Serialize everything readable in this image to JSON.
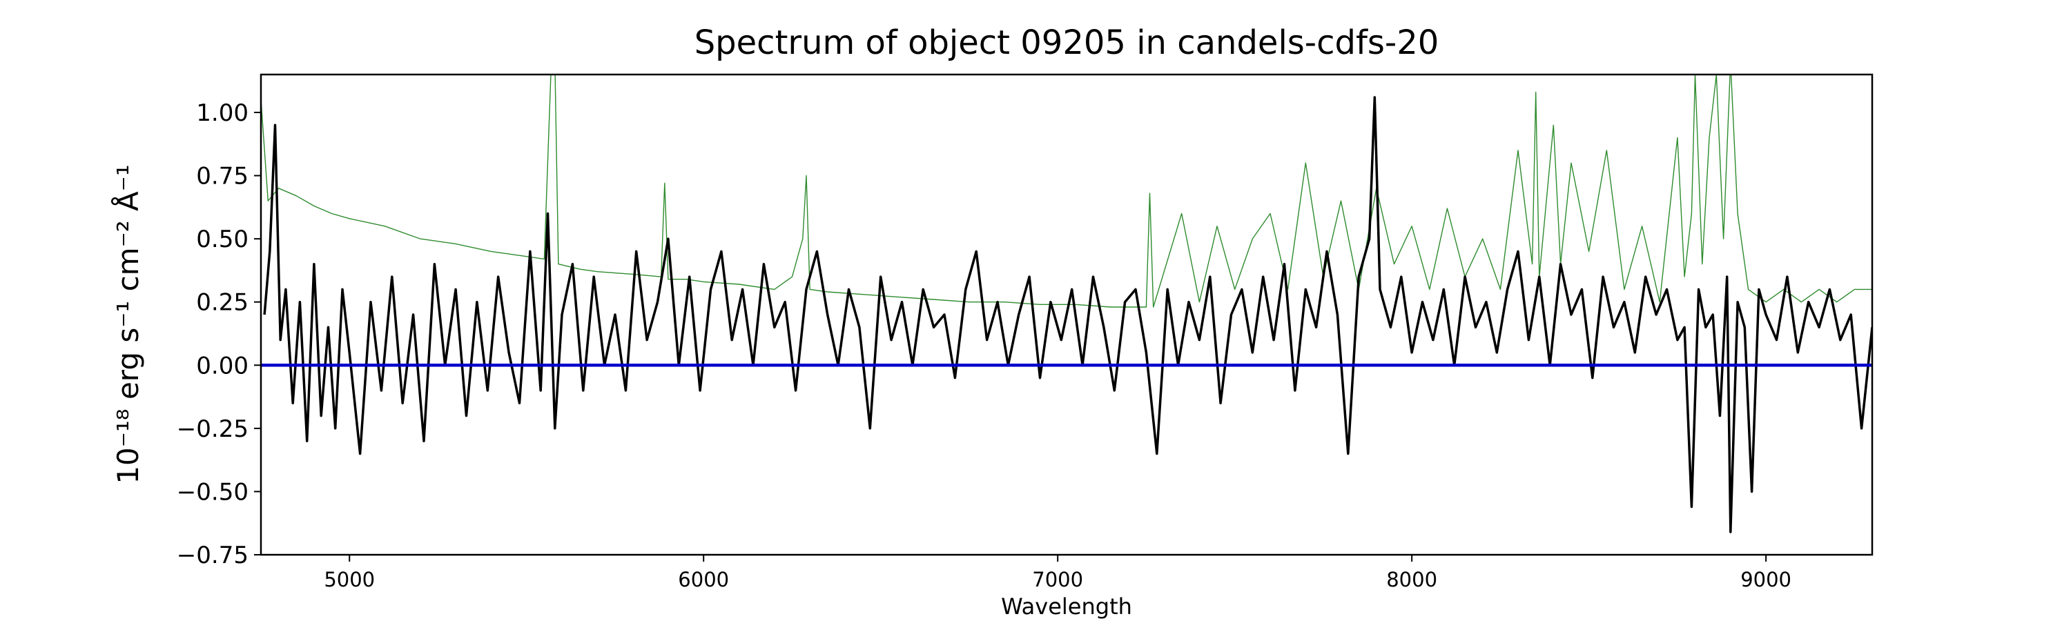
{
  "chart_data": {
    "type": "line",
    "title": "Spectrum of object 09205 in candels-cdfs-20",
    "xlabel": "Wavelength",
    "ylabel": "10⁻¹⁸ erg s⁻¹ cm⁻² Å⁻¹",
    "xlim": [
      4750,
      9300
    ],
    "ylim": [
      -0.75,
      1.15
    ],
    "x_ticks": [
      5000,
      6000,
      7000,
      8000,
      9000
    ],
    "y_ticks": [
      -0.75,
      -0.5,
      -0.25,
      0.0,
      0.25,
      0.5,
      0.75,
      1.0
    ],
    "x_tick_labels": [
      "5000",
      "6000",
      "7000",
      "8000",
      "9000"
    ],
    "y_tick_labels": [
      "−0.75",
      "−0.50",
      "−0.25",
      "0.00",
      "0.25",
      "0.50",
      "0.75",
      "1.00"
    ],
    "grid": false,
    "series": [
      {
        "color": "#000000",
        "style": "solid",
        "x": [
          4760,
          4775,
          4790,
          4805,
          4820,
          4840,
          4860,
          4880,
          4900,
          4920,
          4940,
          4960,
          4980,
          5000,
          5030,
          5060,
          5090,
          5120,
          5150,
          5180,
          5210,
          5240,
          5270,
          5300,
          5330,
          5360,
          5390,
          5420,
          5450,
          5480,
          5510,
          5540,
          5560,
          5580,
          5600,
          5630,
          5660,
          5690,
          5720,
          5750,
          5780,
          5810,
          5840,
          5870,
          5900,
          5930,
          5960,
          5990,
          6020,
          6050,
          6080,
          6110,
          6140,
          6170,
          6200,
          6230,
          6260,
          6290,
          6320,
          6350,
          6380,
          6410,
          6440,
          6470,
          6500,
          6530,
          6560,
          6590,
          6620,
          6650,
          6680,
          6710,
          6740,
          6770,
          6800,
          6830,
          6860,
          6890,
          6920,
          6950,
          6980,
          7010,
          7040,
          7070,
          7100,
          7130,
          7160,
          7190,
          7220,
          7250,
          7280,
          7310,
          7340,
          7370,
          7400,
          7430,
          7460,
          7490,
          7520,
          7550,
          7580,
          7610,
          7640,
          7670,
          7700,
          7730,
          7760,
          7790,
          7820,
          7850,
          7880,
          7895,
          7910,
          7940,
          7970,
          8000,
          8030,
          8060,
          8090,
          8120,
          8150,
          8180,
          8210,
          8240,
          8270,
          8300,
          8330,
          8360,
          8390,
          8420,
          8450,
          8480,
          8510,
          8540,
          8570,
          8600,
          8630,
          8660,
          8690,
          8720,
          8750,
          8770,
          8790,
          8810,
          8830,
          8850,
          8870,
          8890,
          8900,
          8920,
          8940,
          8960,
          8980,
          9000,
          9030,
          9060,
          9090,
          9120,
          9150,
          9180,
          9210,
          9240,
          9270,
          9300
        ],
        "y": [
          0.2,
          0.45,
          0.95,
          0.1,
          0.3,
          -0.15,
          0.25,
          -0.3,
          0.4,
          -0.2,
          0.15,
          -0.25,
          0.3,
          0.05,
          -0.35,
          0.25,
          -0.1,
          0.35,
          -0.15,
          0.2,
          -0.3,
          0.4,
          0.0,
          0.3,
          -0.2,
          0.25,
          -0.1,
          0.35,
          0.05,
          -0.15,
          0.45,
          -0.1,
          0.6,
          -0.25,
          0.2,
          0.4,
          -0.1,
          0.35,
          0.0,
          0.2,
          -0.1,
          0.45,
          0.1,
          0.25,
          0.5,
          0.0,
          0.35,
          -0.1,
          0.3,
          0.45,
          0.1,
          0.3,
          0.0,
          0.4,
          0.15,
          0.25,
          -0.1,
          0.3,
          0.45,
          0.2,
          0.0,
          0.3,
          0.15,
          -0.25,
          0.35,
          0.1,
          0.25,
          0.0,
          0.3,
          0.15,
          0.2,
          -0.05,
          0.3,
          0.45,
          0.1,
          0.25,
          0.0,
          0.2,
          0.35,
          -0.05,
          0.25,
          0.1,
          0.3,
          0.0,
          0.35,
          0.15,
          -0.1,
          0.25,
          0.3,
          0.05,
          -0.35,
          0.3,
          0.0,
          0.25,
          0.1,
          0.35,
          -0.15,
          0.2,
          0.3,
          0.05,
          0.35,
          0.1,
          0.4,
          -0.1,
          0.3,
          0.15,
          0.45,
          0.2,
          -0.35,
          0.35,
          0.5,
          1.06,
          0.3,
          0.15,
          0.35,
          0.05,
          0.25,
          0.1,
          0.3,
          0.0,
          0.35,
          0.15,
          0.25,
          0.05,
          0.3,
          0.45,
          0.1,
          0.35,
          0.0,
          0.4,
          0.2,
          0.3,
          -0.05,
          0.35,
          0.15,
          0.25,
          0.05,
          0.35,
          0.2,
          0.3,
          0.1,
          0.15,
          -0.56,
          0.3,
          0.15,
          0.2,
          -0.2,
          0.35,
          -0.66,
          0.25,
          0.15,
          -0.5,
          0.3,
          0.2,
          0.1,
          0.35,
          0.05,
          0.25,
          0.15,
          0.3,
          0.1,
          0.2,
          -0.25,
          0.15
        ]
      },
      {
        "color": "#2e8b2e",
        "style": "thin",
        "x": [
          4750,
          4770,
          4800,
          4850,
          4900,
          4950,
          5000,
          5100,
          5200,
          5300,
          5400,
          5500,
          5550,
          5570,
          5580,
          5590,
          5650,
          5700,
          5800,
          5880,
          5890,
          5900,
          5950,
          6000,
          6100,
          6200,
          6250,
          6280,
          6290,
          6300,
          6350,
          6450,
          6550,
          6650,
          6750,
          6850,
          6950,
          7050,
          7150,
          7250,
          7260,
          7270,
          7350,
          7400,
          7450,
          7500,
          7550,
          7600,
          7650,
          7700,
          7750,
          7800,
          7850,
          7900,
          7950,
          8000,
          8050,
          8100,
          8150,
          8200,
          8250,
          8300,
          8340,
          8350,
          8360,
          8400,
          8420,
          8450,
          8500,
          8550,
          8600,
          8650,
          8700,
          8750,
          8770,
          8790,
          8800,
          8820,
          8840,
          8860,
          8880,
          8900,
          8920,
          8950,
          9000,
          9050,
          9100,
          9150,
          9200,
          9250,
          9300
        ],
        "y": [
          1.05,
          0.65,
          0.7,
          0.67,
          0.63,
          0.6,
          0.58,
          0.55,
          0.5,
          0.48,
          0.45,
          0.43,
          0.42,
          1.2,
          1.2,
          0.4,
          0.38,
          0.37,
          0.36,
          0.35,
          0.72,
          0.34,
          0.34,
          0.33,
          0.32,
          0.3,
          0.35,
          0.5,
          0.75,
          0.3,
          0.29,
          0.28,
          0.27,
          0.26,
          0.25,
          0.25,
          0.24,
          0.24,
          0.23,
          0.23,
          0.68,
          0.23,
          0.6,
          0.25,
          0.55,
          0.3,
          0.5,
          0.6,
          0.3,
          0.8,
          0.35,
          0.65,
          0.3,
          0.7,
          0.4,
          0.55,
          0.3,
          0.62,
          0.35,
          0.5,
          0.3,
          0.85,
          0.4,
          1.08,
          0.35,
          0.95,
          0.4,
          0.8,
          0.45,
          0.85,
          0.3,
          0.55,
          0.25,
          0.9,
          0.35,
          0.6,
          1.15,
          0.4,
          0.9,
          1.15,
          0.5,
          1.2,
          0.6,
          0.3,
          0.25,
          0.3,
          0.25,
          0.3,
          0.25,
          0.3,
          0.3
        ]
      },
      {
        "color": "#0000cc",
        "style": "thick",
        "x": [
          4750,
          9300
        ],
        "y": [
          0.0,
          0.0
        ]
      }
    ]
  }
}
